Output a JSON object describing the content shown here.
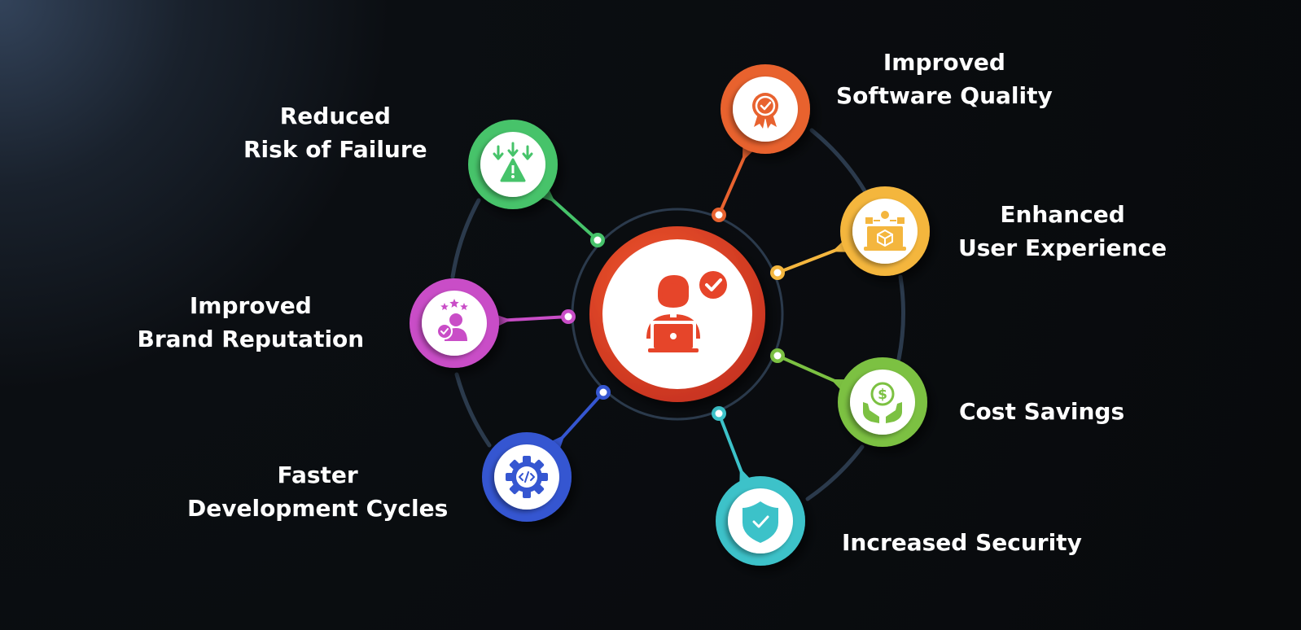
{
  "center": {
    "icon": "developer-laptop-checkmark-icon",
    "color": "#e6452a"
  },
  "benefits": [
    {
      "id": "improved-software-quality",
      "lines": [
        "Improved",
        "Software Quality"
      ],
      "icon": "award-badge-icon",
      "color": "#e8622f"
    },
    {
      "id": "enhanced-user-experience",
      "lines": [
        "Enhanced",
        "User Experience"
      ],
      "icon": "laptop-box-icon",
      "color": "#f4b63e"
    },
    {
      "id": "cost-savings",
      "lines": [
        "Cost Savings"
      ],
      "icon": "hands-dollar-coin-icon",
      "color": "#7cc142"
    },
    {
      "id": "increased-security",
      "lines": [
        "Increased Security"
      ],
      "icon": "shield-check-icon",
      "color": "#3cc2c9"
    },
    {
      "id": "faster-development-cycles",
      "lines": [
        "Faster",
        "Development Cycles"
      ],
      "icon": "gear-code-icon",
      "color": "#3556d1"
    },
    {
      "id": "improved-brand-reputation",
      "lines": [
        "Improved",
        "Brand Reputation"
      ],
      "icon": "user-rating-stars-icon",
      "color": "#c94dc7"
    },
    {
      "id": "reduced-risk-of-failure",
      "lines": [
        "Reduced",
        "Risk of Failure"
      ],
      "icon": "warning-arrows-icon",
      "color": "#46c36a"
    }
  ]
}
